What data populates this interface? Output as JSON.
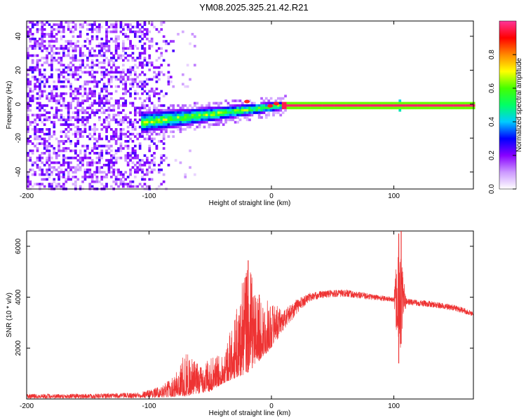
{
  "title": "YM08.2025.325.21.42.R21",
  "chart_data": [
    {
      "type": "heatmap",
      "name": "spectrogram",
      "xlabel": "Height of straight line (km)",
      "ylabel": "Frequency (Hz)",
      "xlim": [
        -200,
        165
      ],
      "ylim": [
        -50,
        49
      ],
      "xticks": [
        -200,
        -100,
        0,
        100
      ],
      "yticks": [
        -40,
        -20,
        0,
        20,
        40
      ],
      "colorbar": {
        "label": "Normalized spectral amplitude",
        "range": [
          0,
          1
        ],
        "ticks": [
          "0.0",
          "0.2",
          "0.4",
          "0.6",
          "0.8"
        ],
        "tick_values": [
          0,
          0.2,
          0.4,
          0.6,
          0.8
        ],
        "colors": [
          "#ffffff",
          "#cc99ff",
          "#8800ff",
          "#0000ff",
          "#00ccff",
          "#00ff66",
          "#44ff00",
          "#ffff00",
          "#ff8800",
          "#ff0000",
          "#ff3399"
        ]
      },
      "features": [
        {
          "name": "noise region",
          "x_range": [
            -200,
            -80
          ],
          "freq_range": [
            -50,
            49
          ],
          "amplitude": "low (0.1-0.3)"
        },
        {
          "name": "emerging signal",
          "x_range": [
            -105,
            10
          ],
          "freq_center_start": -10,
          "freq_center_end": 0,
          "amplitude": "medium (0.2-0.6)"
        },
        {
          "name": "carrier line",
          "x_range": [
            10,
            165
          ],
          "freq": 0,
          "amplitude": "high (0.85-1.0)"
        },
        {
          "name": "spur",
          "x": 104,
          "freq_range": [
            -4,
            4
          ]
        }
      ]
    },
    {
      "type": "line",
      "name": "snr",
      "xlabel": "Height of straight line (km)",
      "ylabel": "SNR (10 * v/v)",
      "xlim": [
        -200,
        165
      ],
      "ylim": [
        0,
        6600
      ],
      "xticks": [
        -200,
        -100,
        0,
        100
      ],
      "yticks": [
        2000,
        4000,
        6000
      ],
      "color": "#ee3333",
      "envelope": {
        "x": [
          -200,
          -150,
          -110,
          -90,
          -80,
          -70,
          -60,
          -50,
          -40,
          -30,
          -20,
          -10,
          0,
          10,
          20,
          30,
          40,
          50,
          60,
          80,
          100,
          104,
          110,
          130,
          150,
          165
        ],
        "low": [
          20,
          20,
          30,
          50,
          80,
          100,
          200,
          300,
          600,
          800,
          1000,
          1500,
          2000,
          2700,
          3300,
          3800,
          3950,
          4000,
          4000,
          3900,
          3800,
          1400,
          3700,
          3600,
          3450,
          3250
        ],
        "high": [
          200,
          200,
          250,
          500,
          900,
          1900,
          1400,
          1600,
          1800,
          3200,
          5500,
          4000,
          3800,
          3500,
          3900,
          4150,
          4250,
          4300,
          4300,
          4150,
          4000,
          6600,
          3950,
          3850,
          3700,
          3450
        ]
      },
      "spikes": [
        {
          "x": -19,
          "y": 5450
        },
        {
          "x": -10,
          "y": 4100
        },
        {
          "x": 104,
          "y": 6500
        },
        {
          "x": 106,
          "y": 6600
        }
      ]
    }
  ]
}
